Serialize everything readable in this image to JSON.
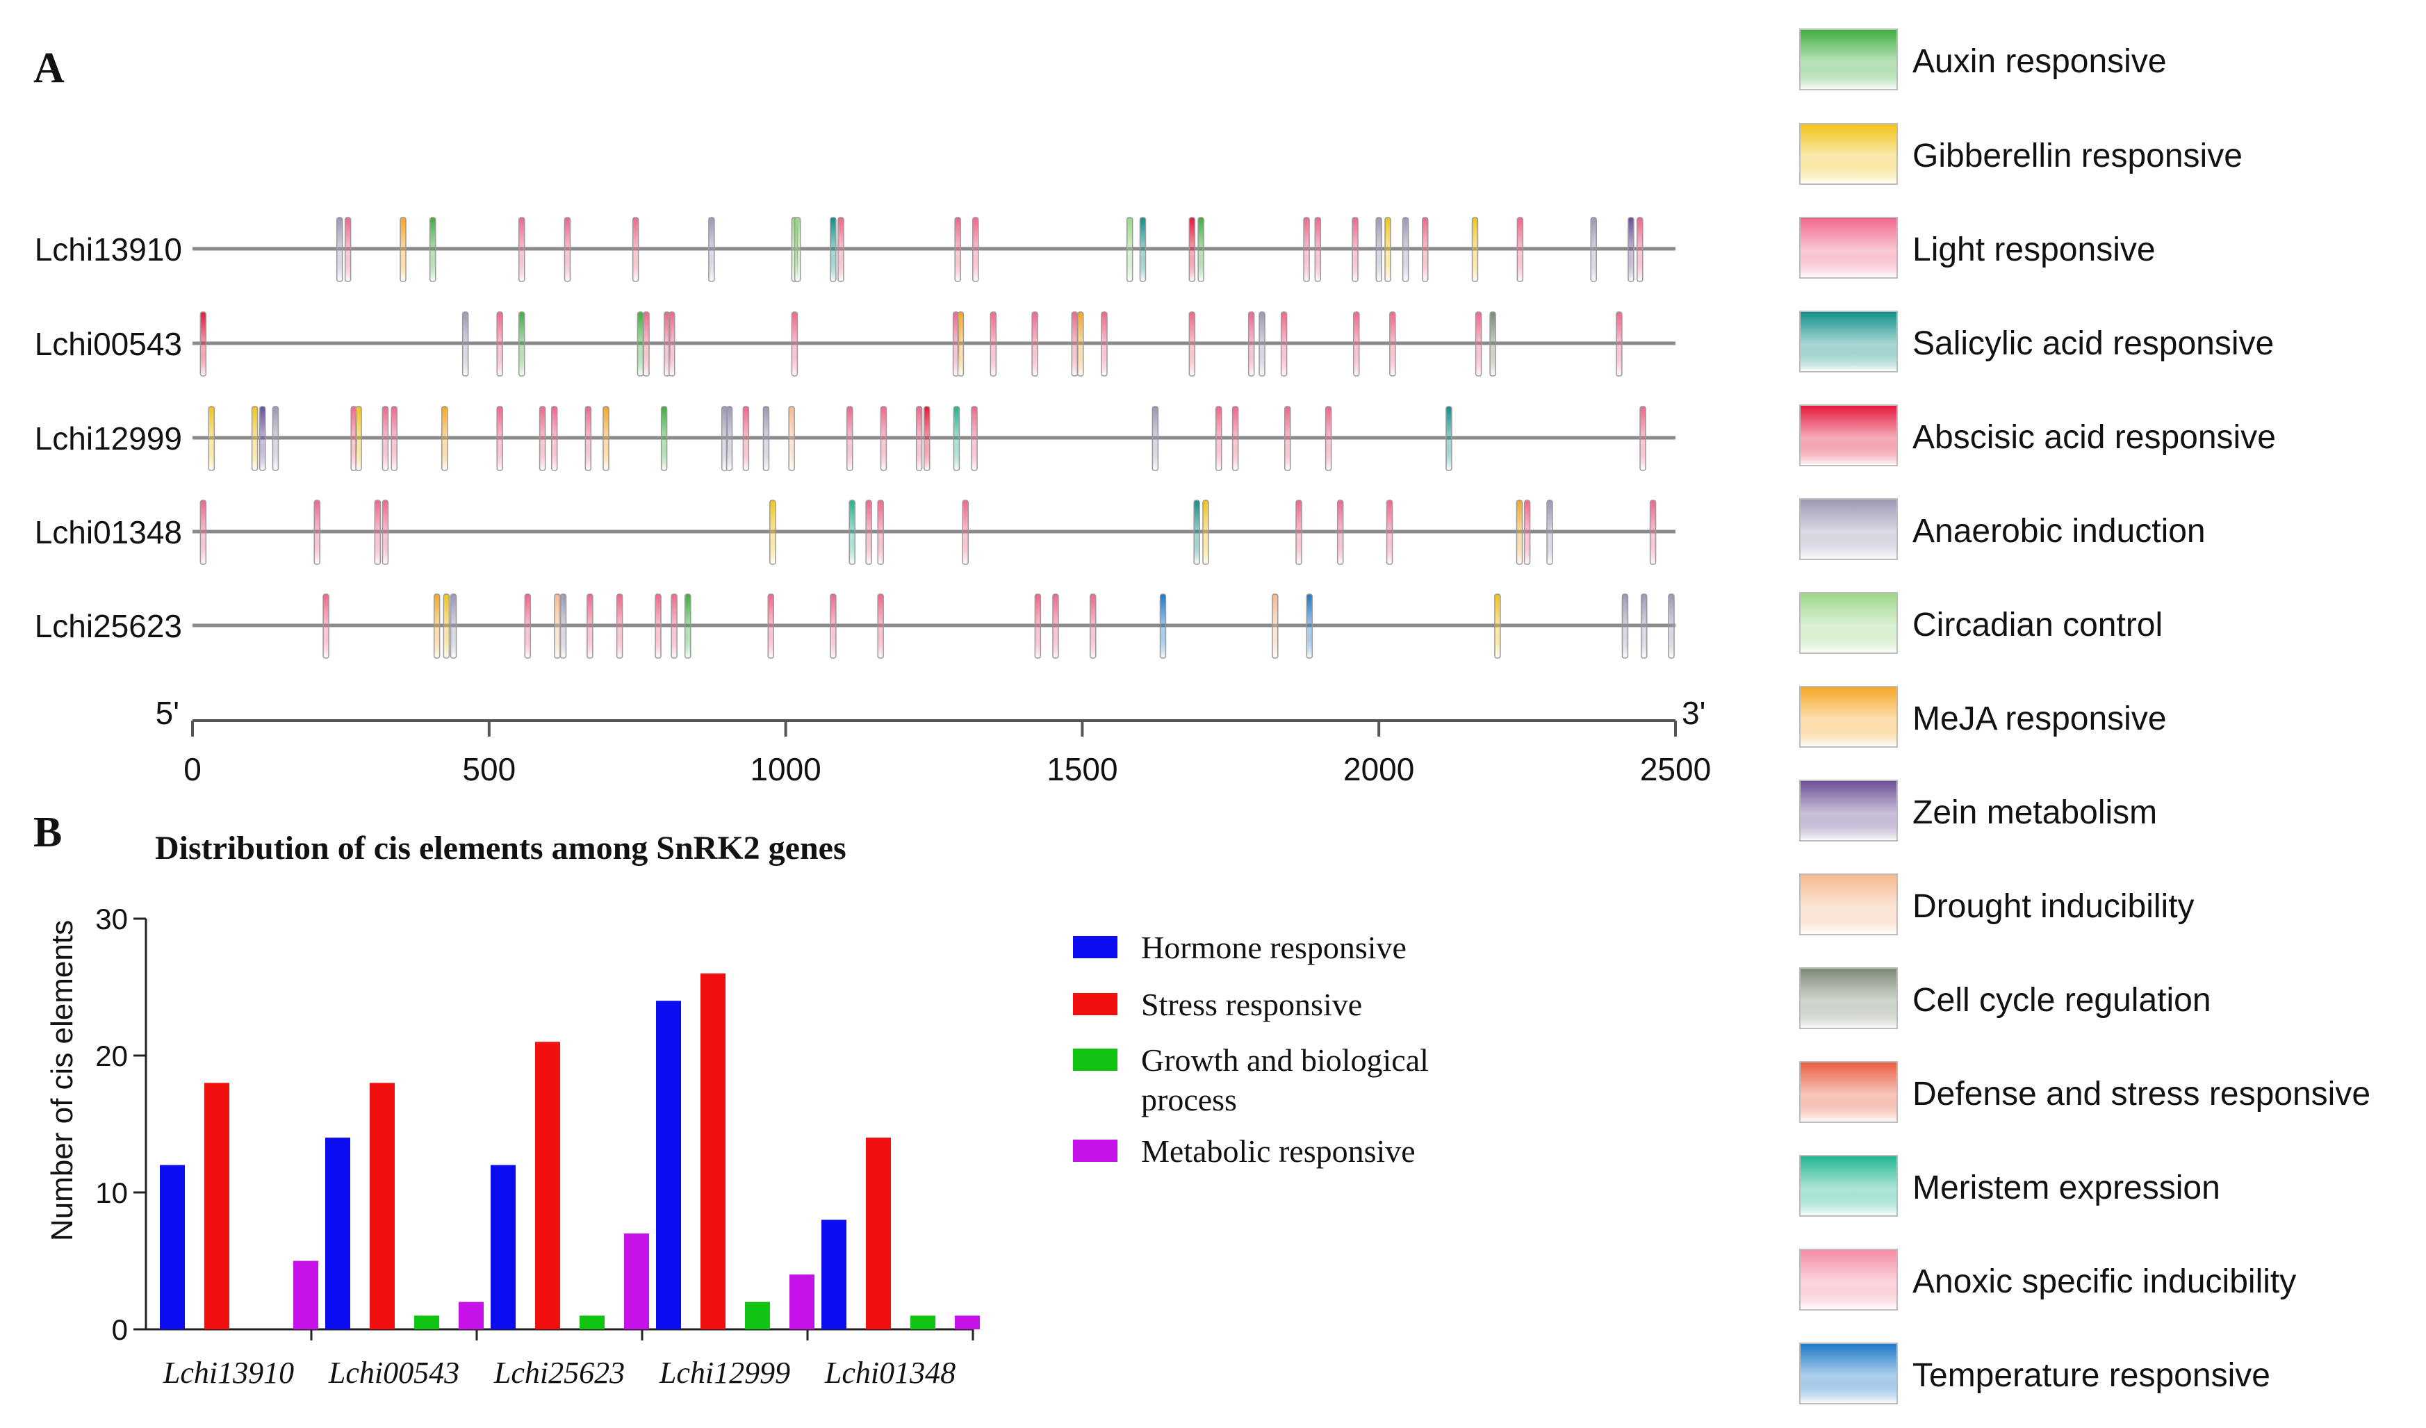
{
  "colors": {
    "auxin": "#3fae3f",
    "gibberellin": "#f2c318",
    "light": "#f0668a",
    "salicylic": "#0f8f88",
    "abscisic": "#e5173c",
    "anaerobic": "#9a98b4",
    "circadian": "#9cd687",
    "meja": "#f6a623",
    "zein": "#6a4e96",
    "drought": "#f6b88e",
    "cellcycle": "#7d8a76",
    "defense": "#e85d3f",
    "meristem": "#1fb58e",
    "anoxic": "#f58aa4",
    "temperature": "#1b78c8",
    "hormone_bar": "#0c0cf0",
    "stress_bar": "#f01010",
    "growth_bar": "#12c412",
    "metabolic_bar": "#c612e8"
  },
  "panel_a": {
    "label": "A",
    "axis": {
      "start_label": "5'",
      "end_label": "3'",
      "min": 0,
      "max": 2500,
      "ticks": [
        "0",
        "500",
        "1000",
        "1500",
        "2000",
        "2500"
      ]
    },
    "genes": [
      {
        "name": "Lchi13910",
        "elements": [
          [
            248,
            "anaerobic"
          ],
          [
            262,
            "light"
          ],
          [
            355,
            "meja"
          ],
          [
            405,
            "auxin"
          ],
          [
            555,
            "light"
          ],
          [
            632,
            "light"
          ],
          [
            747,
            "light"
          ],
          [
            875,
            "anaerobic"
          ],
          [
            1015,
            "circadian"
          ],
          [
            1020,
            "circadian"
          ],
          [
            1080,
            "salicylic"
          ],
          [
            1093,
            "light"
          ],
          [
            1290,
            "light"
          ],
          [
            1320,
            "light"
          ],
          [
            1580,
            "circadian"
          ],
          [
            1602,
            "salicylic"
          ],
          [
            1685,
            "abscisic"
          ],
          [
            1700,
            "auxin"
          ],
          [
            1878,
            "light"
          ],
          [
            1897,
            "light"
          ],
          [
            1960,
            "light"
          ],
          [
            2000,
            "anaerobic"
          ],
          [
            2015,
            "gibberellin"
          ],
          [
            2045,
            "anaerobic"
          ],
          [
            2078,
            "light"
          ],
          [
            2162,
            "gibberellin"
          ],
          [
            2238,
            "light"
          ],
          [
            2362,
            "anaerobic"
          ],
          [
            2425,
            "zein"
          ],
          [
            2440,
            "light"
          ]
        ]
      },
      {
        "name": "Lchi00543",
        "elements": [
          [
            18,
            "abscisic"
          ],
          [
            460,
            "anaerobic"
          ],
          [
            518,
            "light"
          ],
          [
            555,
            "auxin"
          ],
          [
            755,
            "auxin"
          ],
          [
            765,
            "light"
          ],
          [
            800,
            "light"
          ],
          [
            808,
            "light"
          ],
          [
            1015,
            "light"
          ],
          [
            1287,
            "light"
          ],
          [
            1295,
            "meja"
          ],
          [
            1350,
            "light"
          ],
          [
            1420,
            "light"
          ],
          [
            1487,
            "light"
          ],
          [
            1497,
            "meja"
          ],
          [
            1537,
            "light"
          ],
          [
            1685,
            "light"
          ],
          [
            1785,
            "light"
          ],
          [
            1803,
            "anaerobic"
          ],
          [
            1840,
            "light"
          ],
          [
            1962,
            "light"
          ],
          [
            2023,
            "light"
          ],
          [
            2168,
            "light"
          ],
          [
            2192,
            "cellcycle"
          ],
          [
            2405,
            "light"
          ]
        ]
      },
      {
        "name": "Lchi12999",
        "elements": [
          [
            32,
            "gibberellin"
          ],
          [
            105,
            "gibberellin"
          ],
          [
            118,
            "zein"
          ],
          [
            140,
            "anaerobic"
          ],
          [
            272,
            "light"
          ],
          [
            280,
            "gibberellin"
          ],
          [
            325,
            "light"
          ],
          [
            340,
            "light"
          ],
          [
            425,
            "meja"
          ],
          [
            518,
            "light"
          ],
          [
            590,
            "light"
          ],
          [
            610,
            "light"
          ],
          [
            667,
            "light"
          ],
          [
            697,
            "meja"
          ],
          [
            795,
            "auxin"
          ],
          [
            897,
            "anaerobic"
          ],
          [
            905,
            "anaerobic"
          ],
          [
            933,
            "light"
          ],
          [
            967,
            "anaerobic"
          ],
          [
            1010,
            "drought"
          ],
          [
            1108,
            "light"
          ],
          [
            1165,
            "light"
          ],
          [
            1225,
            "light"
          ],
          [
            1238,
            "abscisic"
          ],
          [
            1288,
            "meristem"
          ],
          [
            1318,
            "light"
          ],
          [
            1623,
            "anaerobic"
          ],
          [
            1730,
            "light"
          ],
          [
            1758,
            "light"
          ],
          [
            1846,
            "light"
          ],
          [
            1915,
            "light"
          ],
          [
            2118,
            "salicylic"
          ],
          [
            2445,
            "light"
          ]
        ]
      },
      {
        "name": "Lchi01348",
        "elements": [
          [
            18,
            "light"
          ],
          [
            210,
            "light"
          ],
          [
            312,
            "light"
          ],
          [
            325,
            "light"
          ],
          [
            978,
            "gibberellin"
          ],
          [
            1112,
            "meristem"
          ],
          [
            1140,
            "light"
          ],
          [
            1160,
            "light"
          ],
          [
            1303,
            "light"
          ],
          [
            1693,
            "salicylic"
          ],
          [
            1708,
            "gibberellin"
          ],
          [
            1865,
            "light"
          ],
          [
            1935,
            "light"
          ],
          [
            2018,
            "light"
          ],
          [
            2237,
            "meja"
          ],
          [
            2250,
            "light"
          ],
          [
            2288,
            "anaerobic"
          ],
          [
            2462,
            "light"
          ]
        ]
      },
      {
        "name": "Lchi25623",
        "elements": [
          [
            225,
            "light"
          ],
          [
            412,
            "meja"
          ],
          [
            428,
            "gibberellin"
          ],
          [
            440,
            "anaerobic"
          ],
          [
            565,
            "light"
          ],
          [
            615,
            "drought"
          ],
          [
            625,
            "anaerobic"
          ],
          [
            670,
            "light"
          ],
          [
            720,
            "light"
          ],
          [
            785,
            "light"
          ],
          [
            812,
            "light"
          ],
          [
            835,
            "auxin"
          ],
          [
            975,
            "light"
          ],
          [
            1080,
            "light"
          ],
          [
            1160,
            "light"
          ],
          [
            1425,
            "light"
          ],
          [
            1455,
            "light"
          ],
          [
            1518,
            "light"
          ],
          [
            1636,
            "temperature"
          ],
          [
            1825,
            "drought"
          ],
          [
            1883,
            "temperature"
          ],
          [
            2200,
            "gibberellin"
          ],
          [
            2415,
            "anaerobic"
          ],
          [
            2447,
            "anaerobic"
          ],
          [
            2493,
            "anaerobic"
          ]
        ]
      }
    ],
    "legend": [
      {
        "key": "auxin",
        "label": "Auxin responsive"
      },
      {
        "key": "gibberellin",
        "label": "Gibberellin responsive"
      },
      {
        "key": "light",
        "label": "Light responsive"
      },
      {
        "key": "salicylic",
        "label": "Salicylic acid responsive"
      },
      {
        "key": "abscisic",
        "label": "Abscisic acid responsive"
      },
      {
        "key": "anaerobic",
        "label": "Anaerobic induction"
      },
      {
        "key": "circadian",
        "label": "Circadian control"
      },
      {
        "key": "meja",
        "label": "MeJA responsive"
      },
      {
        "key": "zein",
        "label": "Zein metabolism"
      },
      {
        "key": "drought",
        "label": "Drought inducibility"
      },
      {
        "key": "cellcycle",
        "label": "Cell cycle regulation"
      },
      {
        "key": "defense",
        "label": "Defense and stress responsive"
      },
      {
        "key": "meristem",
        "label": "Meristem expression"
      },
      {
        "key": "anoxic",
        "label": "Anoxic specific inducibility"
      },
      {
        "key": "temperature",
        "label": "Temperature responsive"
      }
    ]
  },
  "panel_b": {
    "label": "B"
  },
  "chart_data": {
    "type": "bar",
    "title": "Distribution of cis elements among SnRK2 genes",
    "xlabel": "",
    "ylabel": "Number of cis elements",
    "ylim": [
      0,
      30
    ],
    "yticks": [
      "0",
      "10",
      "20",
      "30"
    ],
    "categories": [
      "Lchi13910",
      "Lchi00543",
      "Lchi25623",
      "Lchi12999",
      "Lchi01348"
    ],
    "series": [
      {
        "name": "Hormone responsive",
        "color_key": "hormone_bar",
        "values": [
          12,
          14,
          12,
          24,
          8
        ]
      },
      {
        "name": "Stress responsive",
        "color_key": "stress_bar",
        "values": [
          18,
          18,
          21,
          26,
          14
        ]
      },
      {
        "name": "Growth and biological process",
        "legend_lines": [
          "Growth and biological",
          "process"
        ],
        "color_key": "growth_bar",
        "values": [
          0,
          1,
          1,
          2,
          1
        ]
      },
      {
        "name": "Metabolic responsive",
        "color_key": "metabolic_bar",
        "values": [
          5,
          2,
          7,
          4,
          1
        ]
      }
    ]
  }
}
